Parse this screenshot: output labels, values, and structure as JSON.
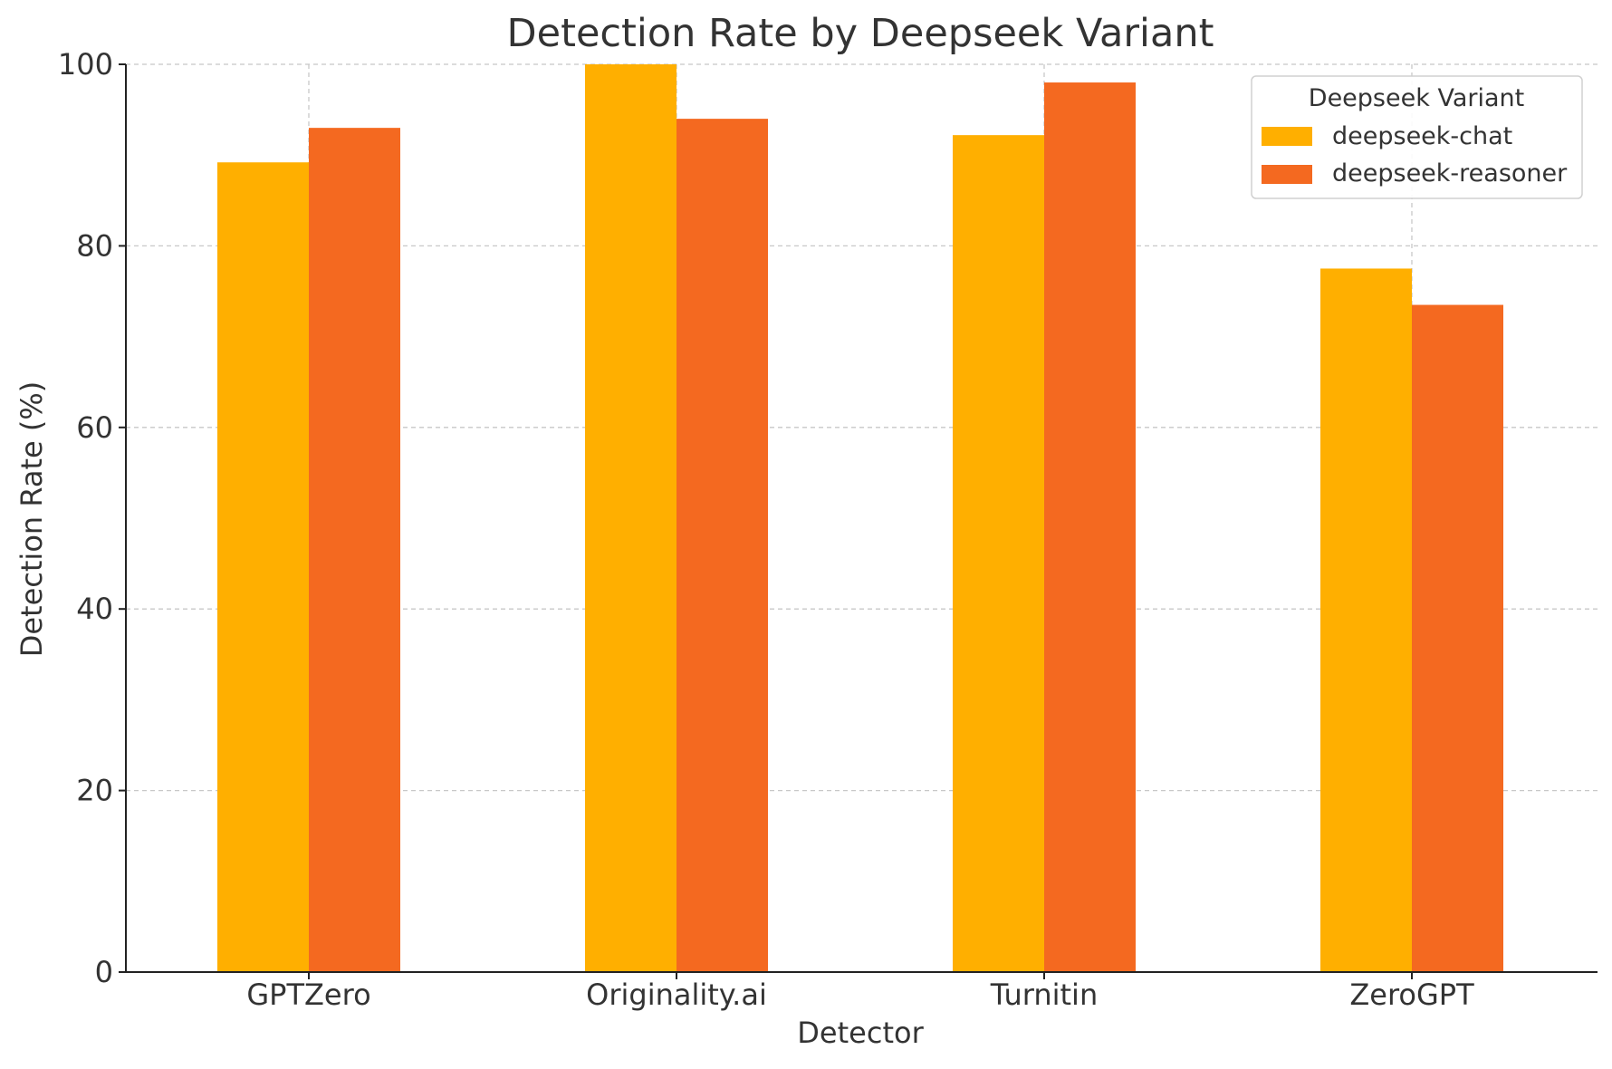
{
  "chart_data": {
    "type": "bar",
    "title": "Detection Rate by Deepseek Variant",
    "xlabel": "Detector",
    "ylabel": "Detection Rate (%)",
    "categories": [
      "GPTZero",
      "Originality.ai",
      "Turnitin",
      "ZeroGPT"
    ],
    "series": [
      {
        "name": "deepseek-chat",
        "color": "#FFAF00",
        "values": [
          89.2,
          100,
          92.2,
          77.5
        ]
      },
      {
        "name": "deepseek-reasoner",
        "color": "#F46920",
        "values": [
          93.0,
          94.0,
          98.0,
          73.5
        ]
      }
    ],
    "ylim": [
      0,
      100
    ],
    "yticks": [
      0,
      20,
      40,
      60,
      80,
      100
    ],
    "grid": true,
    "legend": {
      "title": "Deepseek Variant",
      "placement": "top-right"
    }
  }
}
